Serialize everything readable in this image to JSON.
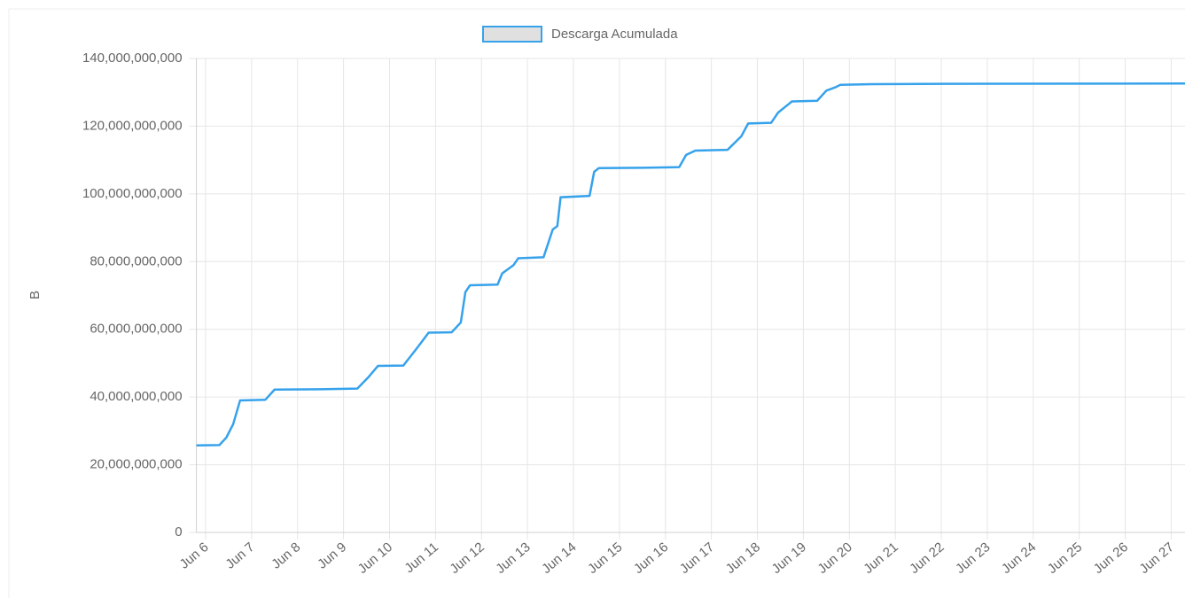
{
  "chart_data": {
    "type": "line",
    "y_label": "B",
    "series": [
      {
        "name": "Descarga Acumulada",
        "color": "#36a2eb",
        "fill": "#e0e0e0",
        "x": [
          5.8,
          6.3,
          6.45,
          6.6,
          6.75,
          7.3,
          7.5,
          8.5,
          9.3,
          9.55,
          9.75,
          10.3,
          10.6,
          10.85,
          11.35,
          11.55,
          11.65,
          11.75,
          12.35,
          12.45,
          12.7,
          12.8,
          13.35,
          13.55,
          13.65,
          13.72,
          14.35,
          14.45,
          14.55,
          15.5,
          16.3,
          16.45,
          16.65,
          17.35,
          17.65,
          17.8,
          18.3,
          18.45,
          18.75,
          19.3,
          19.5,
          19.7,
          19.8,
          20.5,
          22,
          27.3
        ],
        "values": [
          25700000000,
          25800000000,
          28000000000,
          32000000000,
          39000000000,
          39200000000,
          42200000000,
          42300000000,
          42500000000,
          46000000000,
          49200000000,
          49300000000,
          54500000000,
          59000000000,
          59100000000,
          62000000000,
          71000000000,
          73000000000,
          73200000000,
          76500000000,
          79000000000,
          81000000000,
          81300000000,
          89500000000,
          90500000000,
          99000000000,
          99400000000,
          106500000000,
          107600000000,
          107700000000,
          107900000000,
          111500000000,
          112800000000,
          113000000000,
          117000000000,
          120800000000,
          121000000000,
          124000000000,
          127300000000,
          127500000000,
          130500000000,
          131500000000,
          132200000000,
          132400000000,
          132500000000,
          132600000000
        ]
      }
    ],
    "xlim": [
      5.8,
      27.3
    ],
    "xticks": [
      {
        "value": 6,
        "label": "Jun 6"
      },
      {
        "value": 7,
        "label": "Jun 7"
      },
      {
        "value": 8,
        "label": "Jun 8"
      },
      {
        "value": 9,
        "label": "Jun 9"
      },
      {
        "value": 10,
        "label": "Jun 10"
      },
      {
        "value": 11,
        "label": "Jun 11"
      },
      {
        "value": 12,
        "label": "Jun 12"
      },
      {
        "value": 13,
        "label": "Jun 13"
      },
      {
        "value": 14,
        "label": "Jun 14"
      },
      {
        "value": 15,
        "label": "Jun 15"
      },
      {
        "value": 16,
        "label": "Jun 16"
      },
      {
        "value": 17,
        "label": "Jun 17"
      },
      {
        "value": 18,
        "label": "Jun 18"
      },
      {
        "value": 19,
        "label": "Jun 19"
      },
      {
        "value": 20,
        "label": "Jun 20"
      },
      {
        "value": 21,
        "label": "Jun 21"
      },
      {
        "value": 22,
        "label": "Jun 22"
      },
      {
        "value": 23,
        "label": "Jun 23"
      },
      {
        "value": 24,
        "label": "Jun 24"
      },
      {
        "value": 25,
        "label": "Jun 25"
      },
      {
        "value": 26,
        "label": "Jun 26"
      },
      {
        "value": 27,
        "label": "Jun 27"
      }
    ],
    "ylim": [
      0,
      140000000000
    ],
    "yticks": [
      0,
      {
        "value": 20000000000,
        "label": "20,000,000,000"
      },
      {
        "value": 40000000000,
        "label": "40,000,000,000"
      },
      {
        "value": 60000000000,
        "label": "60,000,000,000"
      },
      {
        "value": 80000000000,
        "label": "80,000,000,000"
      },
      {
        "value": 100000000000,
        "label": "100,000,000,000"
      },
      {
        "value": 120000000000,
        "label": "120,000,000,000"
      },
      {
        "value": 140000000000,
        "label": "140,000,000,000"
      }
    ],
    "grid": true
  }
}
